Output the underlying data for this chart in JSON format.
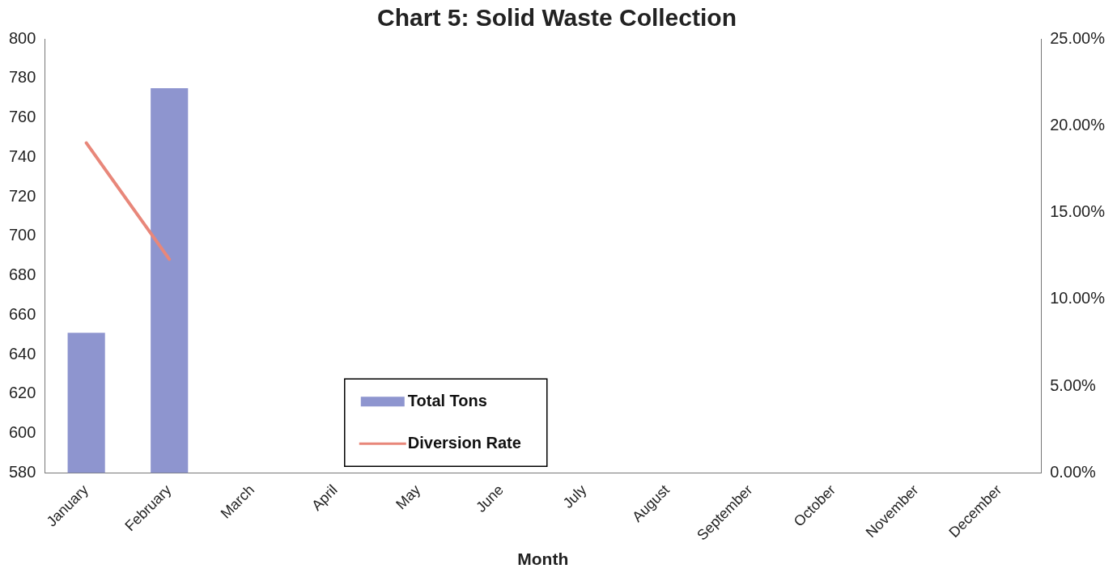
{
  "chart_data": {
    "type": "bar",
    "title": "Chart 5: Solid Waste Collection",
    "xlabel": "Month",
    "categories": [
      "January",
      "February",
      "March",
      "April",
      "May",
      "June",
      "July",
      "August",
      "September",
      "October",
      "November",
      "December"
    ],
    "series": [
      {
        "name": "Total Tons",
        "color": "#8e95cf",
        "values": [
          651,
          775,
          null,
          null,
          null,
          null,
          null,
          null,
          null,
          null,
          null,
          null
        ]
      },
      {
        "name": "Diversion Rate",
        "type": "line",
        "axis": "y2",
        "color": "#e8877a",
        "values": [
          19.0,
          12.3,
          null,
          null,
          null,
          null,
          null,
          null,
          null,
          null,
          null,
          null
        ]
      }
    ],
    "ylim": [
      580,
      800
    ],
    "yticks": [
      580,
      600,
      620,
      640,
      660,
      680,
      700,
      720,
      740,
      760,
      780,
      800
    ],
    "y2lim": [
      0,
      25
    ],
    "y2ticks": [
      {
        "value": 0,
        "label": "0.00%"
      },
      {
        "value": 5,
        "label": "5.00%"
      },
      {
        "value": 10,
        "label": "10.00%"
      },
      {
        "value": 15,
        "label": "15.00%"
      },
      {
        "value": 20,
        "label": "20.00%"
      },
      {
        "value": 25,
        "label": "25.00%"
      }
    ],
    "grid": false,
    "legend": "bottom",
    "marker": "none",
    "line_style": "solid"
  }
}
